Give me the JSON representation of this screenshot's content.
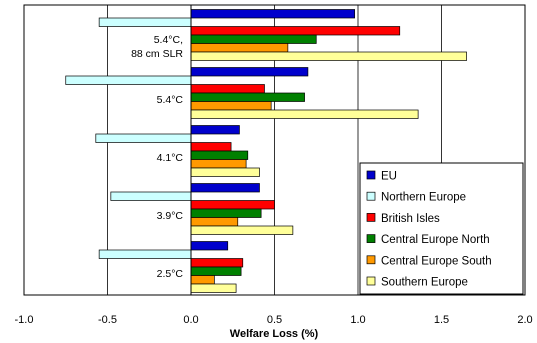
{
  "chart_data": {
    "type": "bar",
    "orientation": "horizontal",
    "xlabel": "Welfare Loss (%)",
    "ylabel": "",
    "title": "",
    "xlim": [
      -1.0,
      2.0
    ],
    "xticks": [
      "-1.0",
      "-0.5",
      "0.0",
      "0.5",
      "1.0",
      "1.5",
      "2.0"
    ],
    "grid": true,
    "legend_position": "bottom-right",
    "categories": [
      {
        "line1": "5.4°C,",
        "line2": "88 cm SLR"
      },
      {
        "line1": "5.4°C",
        "line2": ""
      },
      {
        "line1": "4.1°C",
        "line2": ""
      },
      {
        "line1": "3.9°C",
        "line2": ""
      },
      {
        "line1": "2.5°C",
        "line2": ""
      }
    ],
    "series": [
      {
        "name": "EU",
        "color": "#0000cc",
        "values": [
          0.98,
          0.7,
          0.29,
          0.41,
          0.22
        ]
      },
      {
        "name": "Northern Europe",
        "color": "#ccffff",
        "values": [
          -0.55,
          -0.75,
          -0.57,
          -0.48,
          -0.55
        ]
      },
      {
        "name": "British Isles",
        "color": "#ff0000",
        "values": [
          1.25,
          0.44,
          0.24,
          0.5,
          0.31
        ]
      },
      {
        "name": "Central Europe North",
        "color": "#008000",
        "values": [
          0.75,
          0.68,
          0.34,
          0.42,
          0.3
        ]
      },
      {
        "name": "Central Europe South",
        "color": "#ff9900",
        "values": [
          0.58,
          0.48,
          0.33,
          0.28,
          0.14
        ]
      },
      {
        "name": "Southern Europe",
        "color": "#ffff99",
        "values": [
          1.65,
          1.36,
          0.41,
          0.61,
          0.27
        ]
      }
    ]
  }
}
